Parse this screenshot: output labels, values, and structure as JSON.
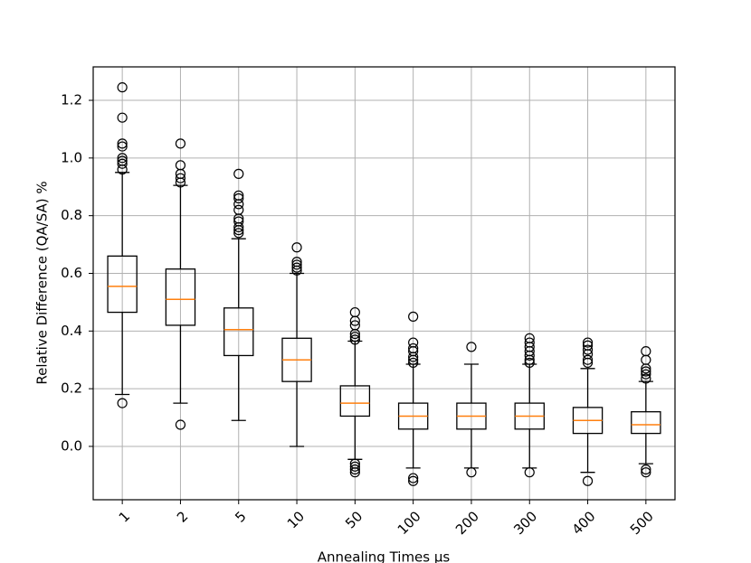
{
  "chart_data": {
    "type": "box",
    "xlabel": "Annealing Times μs",
    "ylabel": "Relative Difference (QA/SA) %",
    "categories": [
      "1",
      "2",
      "5",
      "10",
      "50",
      "100",
      "200",
      "300",
      "400",
      "500"
    ],
    "boxes": [
      {
        "whislo": 0.18,
        "q1": 0.465,
        "med": 0.555,
        "q3": 0.66,
        "whishi": 0.95,
        "fliers": [
          1.245,
          1.14,
          1.05,
          1.04,
          1.0,
          0.99,
          0.98,
          0.96,
          0.15
        ]
      },
      {
        "whislo": 0.15,
        "q1": 0.42,
        "med": 0.51,
        "q3": 0.615,
        "whishi": 0.905,
        "fliers": [
          1.05,
          0.975,
          0.945,
          0.93,
          0.915,
          0.075
        ]
      },
      {
        "whislo": 0.09,
        "q1": 0.315,
        "med": 0.405,
        "q3": 0.48,
        "whishi": 0.72,
        "fliers": [
          0.945,
          0.87,
          0.86,
          0.84,
          0.82,
          0.79,
          0.78,
          0.76,
          0.75,
          0.74
        ]
      },
      {
        "whislo": 0.0,
        "q1": 0.225,
        "med": 0.3,
        "q3": 0.375,
        "whishi": 0.6,
        "fliers": [
          0.69,
          0.64,
          0.63,
          0.62,
          0.61
        ]
      },
      {
        "whislo": -0.045,
        "q1": 0.105,
        "med": 0.15,
        "q3": 0.21,
        "whishi": 0.365,
        "fliers": [
          0.465,
          0.435,
          0.42,
          0.39,
          0.38,
          0.37,
          -0.06,
          -0.07,
          -0.08,
          -0.09
        ]
      },
      {
        "whislo": -0.075,
        "q1": 0.06,
        "med": 0.105,
        "q3": 0.15,
        "whishi": 0.285,
        "fliers": [
          0.45,
          0.36,
          0.34,
          0.33,
          0.31,
          0.3,
          0.29,
          -0.11,
          -0.12
        ]
      },
      {
        "whislo": -0.075,
        "q1": 0.06,
        "med": 0.105,
        "q3": 0.15,
        "whishi": 0.285,
        "fliers": [
          0.345,
          -0.09
        ]
      },
      {
        "whislo": -0.075,
        "q1": 0.06,
        "med": 0.105,
        "q3": 0.15,
        "whishi": 0.285,
        "fliers": [
          0.375,
          0.36,
          0.345,
          0.33,
          0.315,
          0.3,
          0.29,
          -0.09
        ]
      },
      {
        "whislo": -0.09,
        "q1": 0.045,
        "med": 0.09,
        "q3": 0.135,
        "whishi": 0.27,
        "fliers": [
          0.36,
          0.35,
          0.335,
          0.32,
          0.3,
          0.29,
          -0.12
        ]
      },
      {
        "whislo": -0.06,
        "q1": 0.045,
        "med": 0.075,
        "q3": 0.12,
        "whishi": 0.225,
        "fliers": [
          0.33,
          0.3,
          0.27,
          0.26,
          0.25,
          0.235,
          -0.08,
          -0.09
        ]
      }
    ],
    "box_color": "#000000",
    "median_color": "#ff7f0e",
    "ylim": [
      -0.185,
      1.316
    ],
    "yticks": [
      {
        "value": 0,
        "label": "0.0"
      },
      0.2,
      0.4,
      0.6,
      0.8,
      {
        "value": 1,
        "label": "1.0"
      },
      1.2
    ],
    "grid": true
  }
}
